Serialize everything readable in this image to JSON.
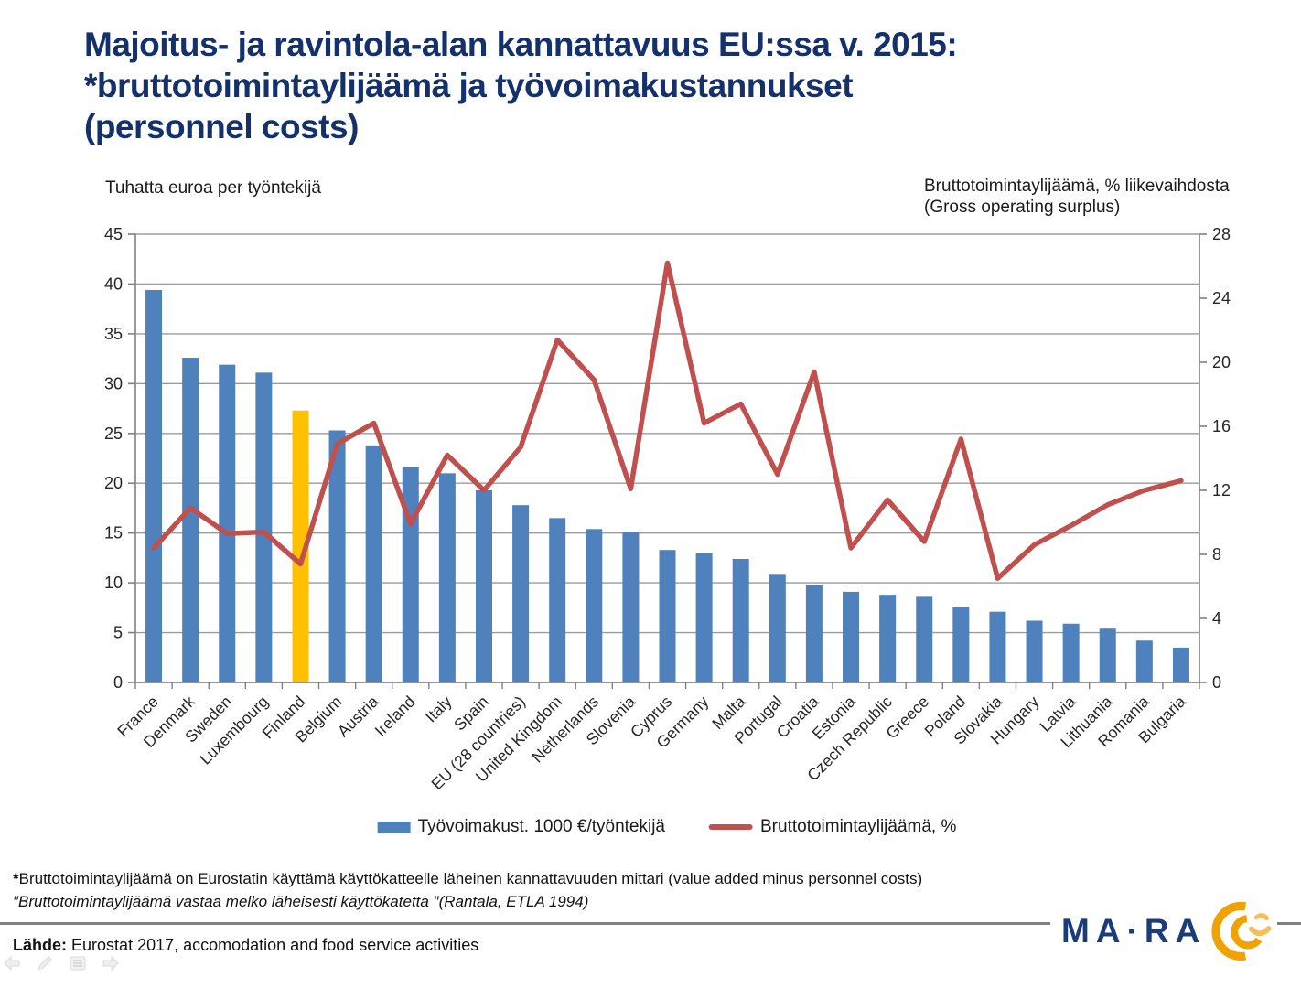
{
  "title": {
    "line1": "Majoitus- ja ravintola-alan kannattavuus EU:ssa v. 2015:",
    "line2": "*bruttotoimintaylijäämä ja työvoimakustannukset",
    "line3": "(personnel costs)"
  },
  "captions": {
    "left_axis": "Tuhatta euroa per työntekijä",
    "right_axis_line1": "Bruttotoimintaylijäämä, % liikevaihdosta",
    "right_axis_line2": "(Gross operating surplus)"
  },
  "legend": {
    "bar_label": "Työvoimakust. 1000 €/työntekijä",
    "line_label": "Bruttotoimintaylijäämä, %"
  },
  "footnotes": {
    "star": "*",
    "line1": "Bruttotoimintaylijäämä on Eurostatin käyttämä käyttökatteelle läheinen kannattavuuden mittari (value added minus personnel costs)",
    "line2": "″Bruttotoimintaylijäämä vastaa melko läheisesti käyttökatetta ″(Rantala, ETLA 1994)"
  },
  "source": {
    "label": "Lähde:",
    "text": "Eurostat 2017, accomodation and food service activities"
  },
  "logo": {
    "text": "MA·RA"
  },
  "nav_icons": [
    "back-arrow-icon",
    "pen-icon",
    "menu-icon",
    "forward-arrow-icon"
  ],
  "colors": {
    "title_navy": "#14316b",
    "bar_blue": "#4F81BD",
    "finland_gold": "#FFC000",
    "line_red": "#C0504D",
    "gridline_grey": "#9b9b9b",
    "logo_amber": "#F0A202"
  },
  "chart_data": {
    "type": "combo",
    "title": "",
    "grid": true,
    "legend_position": "bottom",
    "categories": [
      "France",
      "Denmark",
      "Sweden",
      "Luxembourg",
      "Finland",
      "Belgium",
      "Austria",
      "Ireland",
      "Italy",
      "Spain",
      "EU (28 countries)",
      "United Kingdom",
      "Netherlands",
      "Slovenia",
      "Cyprus",
      "Germany",
      "Malta",
      "Portugal",
      "Croatia",
      "Estonia",
      "Czech Republic",
      "Greece",
      "Poland",
      "Slovakia",
      "Hungary",
      "Latvia",
      "Lithuania",
      "Romania",
      "Bulgaria"
    ],
    "series": [
      {
        "name": "Työvoimakust. 1000 €/työntekijä",
        "type": "bar",
        "axis": "left",
        "color": "#4F81BD",
        "highlight": {
          "index": 4,
          "category": "Finland",
          "color": "#FFC000"
        },
        "values": [
          39.4,
          32.6,
          31.9,
          31.1,
          27.3,
          25.3,
          23.8,
          21.6,
          21.0,
          19.3,
          17.8,
          16.5,
          15.4,
          15.1,
          13.3,
          13.0,
          12.4,
          10.9,
          9.8,
          9.1,
          8.8,
          8.6,
          7.6,
          7.1,
          6.2,
          5.9,
          5.4,
          4.2,
          3.5
        ]
      },
      {
        "name": "Bruttotoimintaylijäämä, %",
        "type": "line",
        "axis": "right",
        "color": "#C0504D",
        "values": [
          8.4,
          10.9,
          9.3,
          9.4,
          7.4,
          14.9,
          16.2,
          9.9,
          14.2,
          12.0,
          14.7,
          21.4,
          18.9,
          12.1,
          26.2,
          16.2,
          17.4,
          13.0,
          19.4,
          8.4,
          11.4,
          8.8,
          15.2,
          6.5,
          8.6,
          9.8,
          11.1,
          12.0,
          12.6
        ]
      }
    ],
    "axes": {
      "left": {
        "title": "Tuhatta euroa per työntekijä",
        "min": 0,
        "max": 45,
        "step": 5
      },
      "right": {
        "title": "Bruttotoimintaylijäämä, % liikevaihdosta (Gross operating surplus)",
        "min": 0,
        "max": 28,
        "step": 4
      }
    }
  }
}
